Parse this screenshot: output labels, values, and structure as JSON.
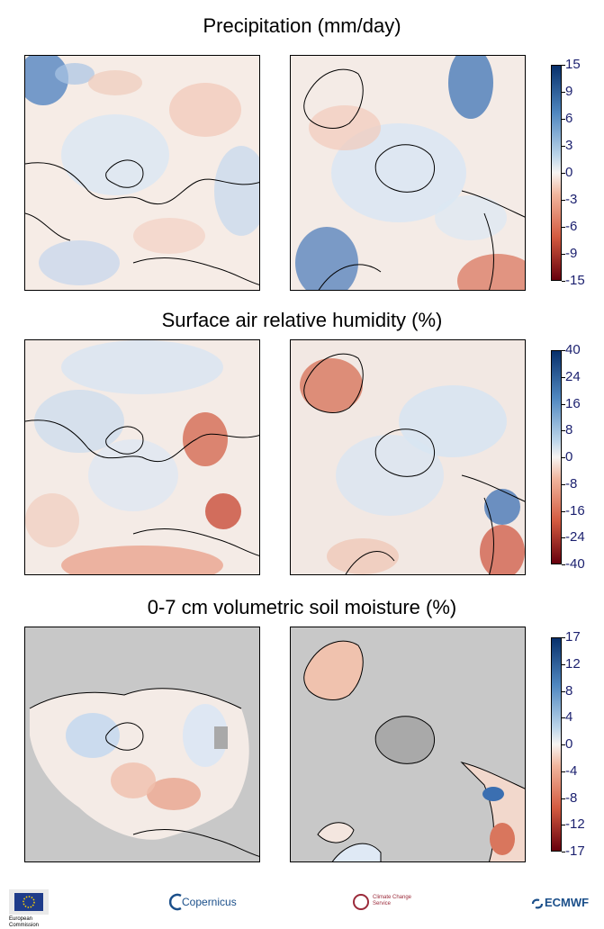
{
  "panels": [
    {
      "title": "Precipitation (mm/day)",
      "colorbar": {
        "ticks": [
          "15",
          "9",
          "6",
          "3",
          "0",
          "-3",
          "-6",
          "-9",
          "-15"
        ],
        "top_color": "#08306b",
        "bottom_color": "#67000d"
      }
    },
    {
      "title": "Surface air relative humidity (%)",
      "colorbar": {
        "ticks": [
          "40",
          "24",
          "16",
          "8",
          "0",
          "-8",
          "-16",
          "-24",
          "-40"
        ],
        "top_color": "#08306b",
        "bottom_color": "#67000d"
      }
    },
    {
      "title": "0-7 cm volumetric soil moisture (%)",
      "colorbar": {
        "ticks": [
          "17",
          "12",
          "8",
          "4",
          "0",
          "-4",
          "-8",
          "-12",
          "-17"
        ],
        "top_color": "#08306b",
        "bottom_color": "#67000d"
      }
    }
  ],
  "colors": {
    "land_mask_gray": "#c8c8c8",
    "neutral": "#f7f4f2",
    "positive": "#2166ac",
    "negative": "#d6604d"
  },
  "footer": {
    "eu_logo_text": "European Commission",
    "copernicus_logo_text": "Copernicus",
    "c3s_logo_text": "Climate Change Service",
    "ecmwf_logo_text": "ECMWF"
  }
}
